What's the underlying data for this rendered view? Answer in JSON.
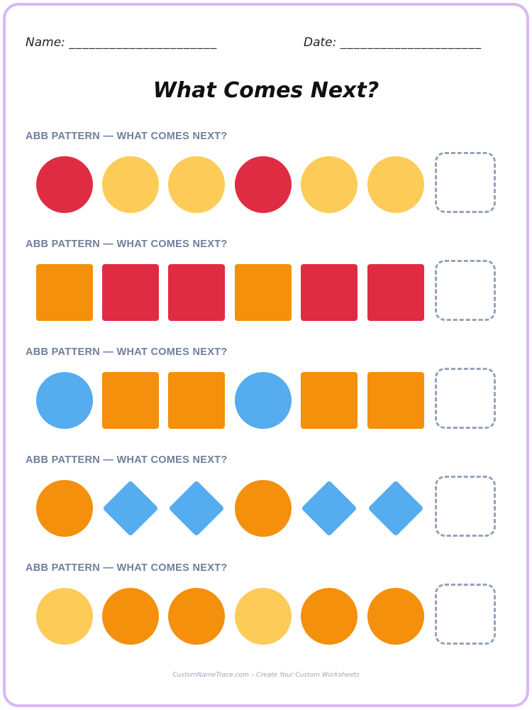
{
  "header": {
    "name_label": "Name:",
    "name_line": "______________________",
    "date_label": "Date:",
    "date_line": "_____________________"
  },
  "title": "What Comes Next?",
  "colors": {
    "red": "#e02c43",
    "yellow": "#fdcb58",
    "orange": "#f4900c",
    "blue": "#55acee",
    "box_dash": "#94a3b8",
    "label": "#6f7f9a",
    "frame": "#d9b8f5"
  },
  "patterns": [
    {
      "label": "ABB PATTERN — WHAT COMES NEXT?",
      "shapes": [
        {
          "shape": "circle",
          "color": "red"
        },
        {
          "shape": "circle",
          "color": "yellow"
        },
        {
          "shape": "circle",
          "color": "yellow"
        },
        {
          "shape": "circle",
          "color": "red"
        },
        {
          "shape": "circle",
          "color": "yellow"
        },
        {
          "shape": "circle",
          "color": "yellow"
        }
      ]
    },
    {
      "label": "ABB PATTERN — WHAT COMES NEXT?",
      "shapes": [
        {
          "shape": "square",
          "color": "orange"
        },
        {
          "shape": "square",
          "color": "red"
        },
        {
          "shape": "square",
          "color": "red"
        },
        {
          "shape": "square",
          "color": "orange"
        },
        {
          "shape": "square",
          "color": "red"
        },
        {
          "shape": "square",
          "color": "red"
        }
      ]
    },
    {
      "label": "ABB PATTERN — WHAT COMES NEXT?",
      "shapes": [
        {
          "shape": "circle",
          "color": "blue"
        },
        {
          "shape": "square",
          "color": "orange"
        },
        {
          "shape": "square",
          "color": "orange"
        },
        {
          "shape": "circle",
          "color": "blue"
        },
        {
          "shape": "square",
          "color": "orange"
        },
        {
          "shape": "square",
          "color": "orange"
        }
      ]
    },
    {
      "label": "ABB PATTERN — WHAT COMES NEXT?",
      "shapes": [
        {
          "shape": "circle",
          "color": "orange"
        },
        {
          "shape": "diamond",
          "color": "blue"
        },
        {
          "shape": "diamond",
          "color": "blue"
        },
        {
          "shape": "circle",
          "color": "orange"
        },
        {
          "shape": "diamond",
          "color": "blue"
        },
        {
          "shape": "diamond",
          "color": "blue"
        }
      ]
    },
    {
      "label": "ABB PATTERN — WHAT COMES NEXT?",
      "shapes": [
        {
          "shape": "circle",
          "color": "yellow"
        },
        {
          "shape": "circle",
          "color": "orange"
        },
        {
          "shape": "circle",
          "color": "orange"
        },
        {
          "shape": "circle",
          "color": "yellow"
        },
        {
          "shape": "circle",
          "color": "orange"
        },
        {
          "shape": "circle",
          "color": "orange"
        }
      ]
    }
  ],
  "footer": "CustomNameTrace.com – Create Your Custom Worksheets"
}
